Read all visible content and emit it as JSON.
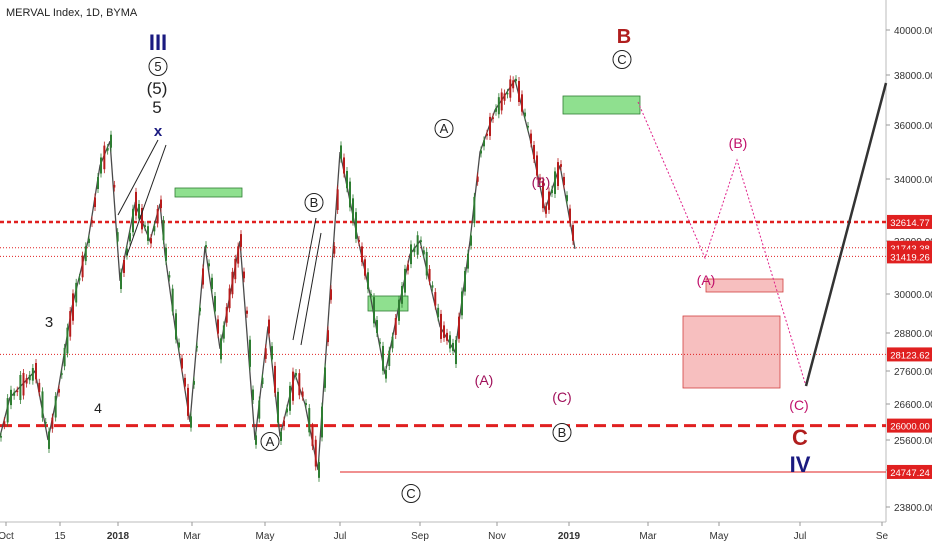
{
  "chart_data": {
    "type": "line",
    "title": "MERVAL Index, 1D, BYMA",
    "xlabel": "",
    "ylabel": "",
    "x_ticks": [
      "Oct",
      "15",
      "2018",
      "Mar",
      "May",
      "Jul",
      "Sep",
      "Nov",
      "2019",
      "Mar",
      "May",
      "Jul",
      "Se"
    ],
    "y_ticks": [
      23800,
      24800,
      25600,
      26600,
      27600,
      28800,
      30000,
      32000,
      34000,
      36000,
      38000,
      40000
    ],
    "y_tick_labels": [
      "23800.00",
      "24800.00",
      "25600.00",
      "26600.00",
      "27600.00",
      "28800.00",
      "30000.00",
      "32000.00",
      "34000.00",
      "36000.00",
      "38000.00",
      "40000.00"
    ],
    "ylim": [
      23000,
      41000
    ],
    "grid": false,
    "series": [
      {
        "type": "candlestick-approx",
        "points": [
          [
            "Oct",
            25700
          ],
          [
            "Oct",
            26800
          ],
          [
            "15",
            27600
          ],
          [
            "15",
            25600
          ],
          [
            "15",
            27000
          ],
          [
            "2018",
            29600
          ],
          [
            "2018",
            32000
          ],
          [
            "2018",
            34500
          ],
          [
            "2018",
            35400
          ],
          [
            "2018",
            30500
          ],
          [
            "Mar",
            33200
          ],
          [
            "Mar",
            32000
          ],
          [
            "Mar",
            33200
          ],
          [
            "May",
            31500
          ],
          [
            "May",
            29000
          ],
          [
            "May",
            26100
          ],
          [
            "May",
            31800
          ],
          [
            "Jul",
            28300
          ],
          [
            "Jul",
            32000
          ],
          [
            "Jul",
            25600
          ],
          [
            "Jul",
            29000
          ],
          [
            "Jul",
            25700
          ],
          [
            "Sep",
            27500
          ],
          [
            "Sep",
            26600
          ],
          [
            "Sep",
            24800
          ],
          [
            "Sep",
            30000
          ],
          [
            "Sep",
            35000
          ],
          [
            "Sep",
            32500
          ],
          [
            "Nov",
            30000
          ],
          [
            "Nov",
            27500
          ],
          [
            "Nov",
            29500
          ],
          [
            "Nov",
            31500
          ],
          [
            "Nov",
            32000
          ],
          [
            "Nov",
            29000
          ],
          [
            "Nov",
            28200
          ],
          [
            "2019",
            32000
          ],
          [
            "2019",
            35000
          ],
          [
            "2019",
            36600
          ],
          [
            "2019",
            37800
          ],
          [
            "Mar",
            35500
          ],
          [
            "Mar",
            33000
          ],
          [
            "Mar",
            34500
          ],
          [
            "Mar",
            31700
          ]
        ]
      }
    ],
    "horizontal_levels": [
      {
        "value": 32614.77,
        "label": "32614.77",
        "style": "dashed-red"
      },
      {
        "value": 31743.38,
        "label": "31743.38",
        "style": "dotted-red"
      },
      {
        "value": 31419.26,
        "label": "31419.26",
        "style": "dotted-red"
      },
      {
        "value": 28123.62,
        "label": "28123.62",
        "style": "dotted-red"
      },
      {
        "value": 26000.0,
        "label": "26000.00",
        "style": "dashed-red-thick"
      },
      {
        "value": 24747.24,
        "label": "24747.24",
        "style": "solid-red"
      }
    ],
    "annotations": [
      {
        "text": "III",
        "color": "#1a1a80"
      },
      {
        "text": "5",
        "circled": true,
        "color": "#222222"
      },
      {
        "text": "(5)",
        "color": "#222222"
      },
      {
        "text": "5",
        "color": "#222222"
      },
      {
        "text": "x",
        "color": "#1a1a80"
      },
      {
        "text": "3",
        "color": "#222222"
      },
      {
        "text": "4",
        "color": "#222222"
      },
      {
        "text": "B",
        "circled": true,
        "color": "#222222"
      },
      {
        "text": "A",
        "circled": true,
        "color": "#222222"
      },
      {
        "text": "A",
        "circled": true,
        "color": "#222222"
      },
      {
        "text": "C",
        "circled": true,
        "color": "#222222"
      },
      {
        "text": "(B)",
        "color": "#a0105a"
      },
      {
        "text": "(A)",
        "color": "#a0105a"
      },
      {
        "text": "(C)",
        "color": "#a0105a"
      },
      {
        "text": "B",
        "circled": true,
        "color": "#222222"
      },
      {
        "text": "B",
        "color": "#b01e1e"
      },
      {
        "text": "C",
        "circled": true,
        "color": "#222222"
      },
      {
        "text": "(B)",
        "color": "#c0106a"
      },
      {
        "text": "(A)",
        "color": "#c0106a"
      },
      {
        "text": "(C)",
        "color": "#c0106a"
      },
      {
        "text": "C",
        "color": "#b01e1e"
      },
      {
        "text": "IV",
        "color": "#1a1a80"
      }
    ]
  },
  "colors": {
    "up_candle": "#2e7d32",
    "down_candle": "#b71c1c",
    "level_red": "#e02020",
    "projection_magenta": "#e0208a",
    "green_zone": "#5fd35f",
    "pink_zone": "#f4a4a4",
    "axis_text": "#333333"
  }
}
